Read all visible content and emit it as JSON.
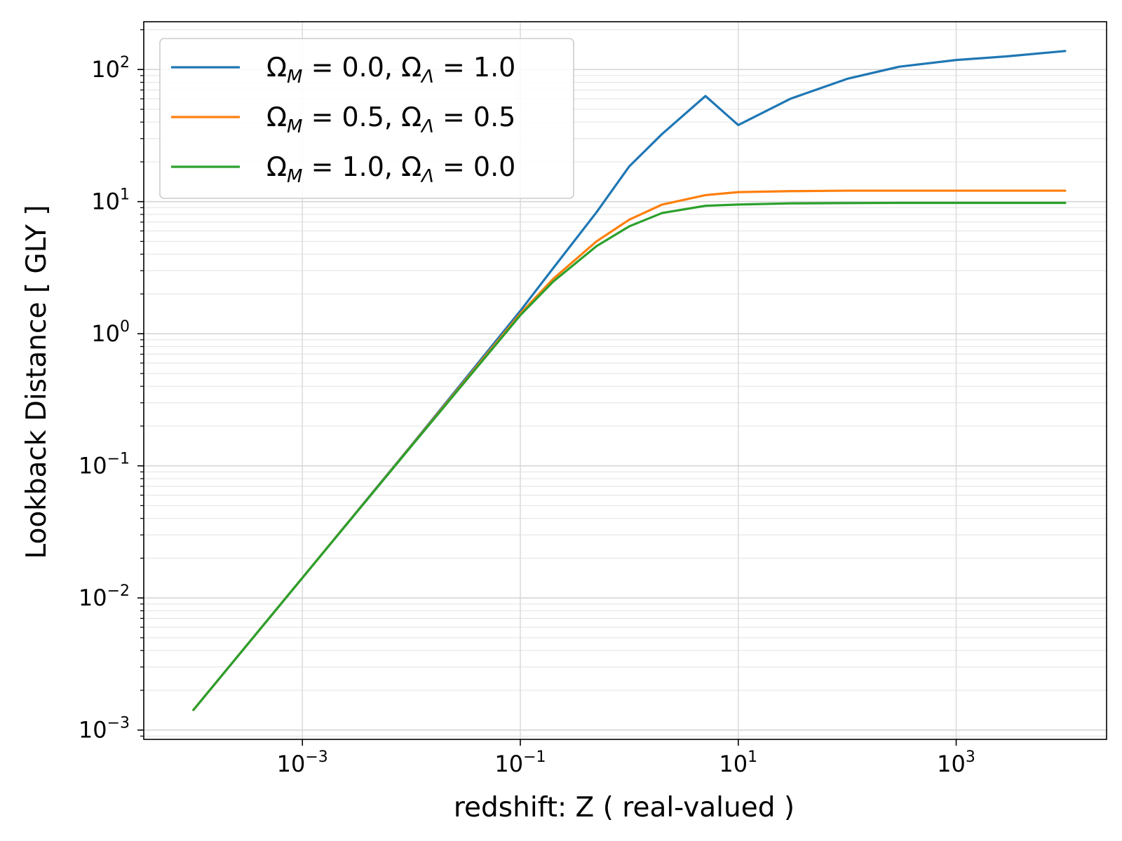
{
  "chart_data": {
    "type": "line",
    "title": "",
    "xlabel": "redshift: Z ( real-valued )",
    "ylabel": "Lookback Distance [ GLY ]",
    "x_scale": "log",
    "y_scale": "log",
    "xlim": [
      3.5e-05,
      24000
    ],
    "ylim": [
      0.00085,
      230
    ],
    "grid": "major and minor",
    "legend_position": "upper-left",
    "x_ticks": [
      {
        "value": 0.001,
        "base": "10",
        "exp": "−3"
      },
      {
        "value": 0.1,
        "base": "10",
        "exp": "−1"
      },
      {
        "value": 10,
        "base": "10",
        "exp": "1"
      },
      {
        "value": 1000,
        "base": "10",
        "exp": "3"
      }
    ],
    "y_ticks": [
      {
        "value": 0.001,
        "base": "10",
        "exp": "−3"
      },
      {
        "value": 0.01,
        "base": "10",
        "exp": "−2"
      },
      {
        "value": 0.1,
        "base": "10",
        "exp": "−1"
      },
      {
        "value": 1,
        "base": "10",
        "exp": "0"
      },
      {
        "value": 10,
        "base": "10",
        "exp": "1"
      },
      {
        "value": 100,
        "base": "10",
        "exp": "2"
      }
    ],
    "x": [
      0.0001,
      0.001,
      0.01,
      0.1,
      0.2,
      0.5,
      1,
      2,
      5,
      10,
      30,
      100,
      300,
      1000,
      3000,
      10000
    ],
    "series": [
      {
        "name": "Ω_M = 0.0, Ω_Λ = 1.0",
        "legend": {
          "p1": "Ω",
          "sub1": "M",
          "p2": " = 0.0, Ω",
          "sub2": "Λ",
          "p3": " = 1.0"
        },
        "color": "#1f77b4",
        "values": [
          0.00142,
          0.0142,
          0.143,
          1.49,
          3.13,
          8.3,
          18.5,
          32.5,
          63.0,
          38.0,
          60.0,
          85.0,
          105.0,
          118.0,
          126.0,
          138.0
        ]
      },
      {
        "name": "Ω_M = 0.5, Ω_Λ = 0.5",
        "legend": {
          "p1": "Ω",
          "sub1": "M",
          "p2": " = 0.5, Ω",
          "sub2": "Λ",
          "p3": " = 0.5"
        },
        "color": "#ff7f0e",
        "values": [
          0.00142,
          0.0142,
          0.142,
          1.42,
          2.6,
          5.0,
          7.3,
          9.5,
          11.2,
          11.8,
          12.0,
          12.1,
          12.1,
          12.1,
          12.1,
          12.1
        ]
      },
      {
        "name": "Ω_M = 1.0, Ω_Λ = 0.0",
        "legend": {
          "p1": "Ω",
          "sub1": "M",
          "p2": " = 1.0, Ω",
          "sub2": "Λ",
          "p3": " = 0.0"
        },
        "color": "#2ca02c",
        "values": [
          0.00142,
          0.0142,
          0.141,
          1.38,
          2.48,
          4.6,
          6.5,
          8.2,
          9.3,
          9.5,
          9.7,
          9.75,
          9.78,
          9.78,
          9.78,
          9.78
        ]
      }
    ]
  }
}
